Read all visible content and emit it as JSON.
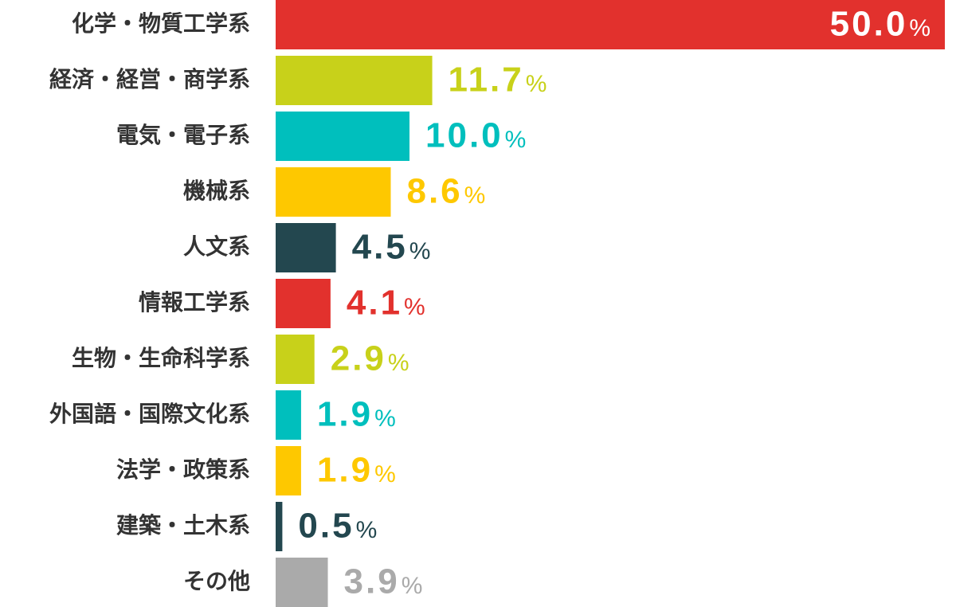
{
  "chart_data": {
    "type": "barh",
    "categories": [
      "化学・物質工学系",
      "経済・経営・商学系",
      "電気・電子系",
      "機械系",
      "人文系",
      "情報工学系",
      "生物・生命科学系",
      "外国語・国際文化系",
      "法学・政策系",
      "建築・土木系",
      "その他"
    ],
    "values": [
      50,
      11.7,
      10,
      8.6,
      4.5,
      4.1,
      2.9,
      1.9,
      1.9,
      0.5,
      3.9
    ],
    "value_labels": [
      "50.0",
      "11.7",
      "10.0",
      "8.6",
      "4.5",
      "4.1",
      "2.9",
      "1.9",
      "1.9",
      "0.5",
      "3.9"
    ],
    "value_unit": "%",
    "colors": [
      "#e2312d",
      "#c8d11a",
      "#00bfbd",
      "#fec800",
      "#23474f",
      "#e2312d",
      "#c8d11a",
      "#00bfbd",
      "#fec800",
      "#23474f",
      "#aaaaaa"
    ],
    "xlim": [
      0,
      50
    ]
  }
}
